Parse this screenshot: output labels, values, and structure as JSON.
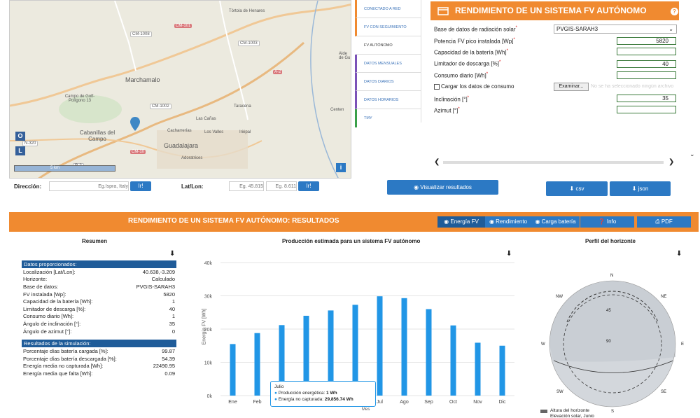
{
  "map": {
    "places": [
      "Tórtola de Henares",
      "Marchamalo",
      "Campo de Golf-Polígono 13",
      "Taracena",
      "Las Cañas",
      "Cabanillas del Campo",
      "Cacharrerías",
      "Los Valles",
      "Iriépal",
      "Guadalajara",
      "Adoratrices",
      "Alde de Gu",
      "Centen"
    ],
    "roads": [
      "CM-101",
      "CM-1008",
      "CM-1003",
      "A-2",
      "CM-1002",
      "N-320",
      "CM-10",
      "R-2"
    ],
    "scale": "5 km",
    "btn_o": "O",
    "btn_l": "L",
    "btn_info": "i"
  },
  "address": {
    "label": "Dirección:",
    "placeholder": "Eg.Ispra, Italy",
    "go": "Ir!",
    "latlon_label": "Lat/Lon:",
    "lat_placeholder": "Eg. 45.815",
    "lon_placeholder": "Eg. 8.611",
    "go2": "Ir!"
  },
  "tabs": [
    "CONECTADO A RED",
    "FV CON SEGUIMIENTO",
    "FV AUTÓNOMO",
    "DATOS MENSUALES",
    "DATOS DIARIOS",
    "DATOS HORARIOS",
    "TMY"
  ],
  "panel": {
    "title": "RENDIMIENTO DE UN SISTEMA FV AUTÓNOMO",
    "help": "?",
    "db_label": "Base de datos de radiación solar",
    "db_value": "PVGIS-SARAH3",
    "pv_label": "Potencia FV pico instalada [Wp]",
    "pv_value": "5820",
    "bat_label": "Capacidad de la batería [Wh]",
    "dis_label": "Limitador de descarga [%]",
    "dis_value": "40",
    "cons_label": "Consumo diario [Wh]",
    "load_label": "Cargar los datos de consumo",
    "browse": "Examinar...",
    "nofile": "No se ha seleccionado ningún archivo",
    "incl_label": "Inclinación [°]",
    "incl_value": "35",
    "az_label": "Azimut [°]",
    "req": "*"
  },
  "visualize": "Visualizar resultados",
  "csv": "csv",
  "json": "json",
  "results": {
    "title": "RENDIMIENTO DE UN SISTEMA FV AUTÓNOMO: RESULTADOS",
    "b_energy": "Energía FV",
    "b_rend": "Rendimiento",
    "b_carga": "Carga batería",
    "b_info": "Info",
    "b_pdf": "PDF"
  },
  "summary": {
    "title": "Resumen",
    "given_header": "Datos proporcionados:",
    "given": [
      [
        "Localización [Lat/Lon]:",
        "40.638,-3.209"
      ],
      [
        "Horizonte:",
        "Calculado"
      ],
      [
        "Base de datos:",
        "PVGIS-SARAH3"
      ],
      [
        "FV instalada [Wp]:",
        "5820"
      ],
      [
        "Capacidad de la batería [Wh]:",
        "1"
      ],
      [
        "Limitador de descarga [%]:",
        "40"
      ],
      [
        "Consumo diario [Wh]:",
        "1"
      ],
      [
        "Ángulo de inclinación [°]:",
        "35"
      ],
      [
        "Ángulo de azimut [°]:",
        "0"
      ]
    ],
    "sim_header": "Resultados de la simulación:",
    "sim": [
      [
        "Porcentaje días batería cargada [%]:",
        "99.87"
      ],
      [
        "Porcentaje días batería descargada [%]:",
        "54.39"
      ],
      [
        "Energía media no capturada [Wh]:",
        "22490.95"
      ],
      [
        "Energía media que falta [Wh]:",
        "0.09"
      ]
    ]
  },
  "chart_data": {
    "type": "bar",
    "title": "Producción estimada para un sistema FV autónomo",
    "ylabel": "Energía FV [Wh]",
    "xlabel": "Mes",
    "categories": [
      "Ene",
      "Feb",
      "Mar",
      "Abr",
      "May",
      "Jun",
      "Jul",
      "Ago",
      "Sep",
      "Oct",
      "Nov",
      "Dic"
    ],
    "values": [
      15500,
      18800,
      21200,
      24000,
      25600,
      27300,
      29857,
      29300,
      26000,
      21100,
      15900,
      15000
    ],
    "ylim": [
      0,
      40000
    ],
    "yticks": [
      "0k",
      "10k",
      "20k",
      "30k",
      "40k"
    ],
    "color": "#2196e6",
    "tooltip": {
      "month": "Julio",
      "l1_label": "Producción energética: ",
      "l1_value": "1 Wh",
      "l2_label": "Energía no capturada: ",
      "l2_value": "29,856.74 Wh"
    }
  },
  "horizon": {
    "title": "Perfil del horizonte",
    "labels": {
      "n": "N",
      "ne": "NE",
      "e": "E",
      "se": "SE",
      "s": "S",
      "sw": "SW",
      "w": "W",
      "nw": "NW",
      "c45": "45",
      "c90": "90"
    },
    "legend1": "Altura del horizonte",
    "legend2": "Elevación solar, Junio"
  },
  "download_icon": "⬇"
}
